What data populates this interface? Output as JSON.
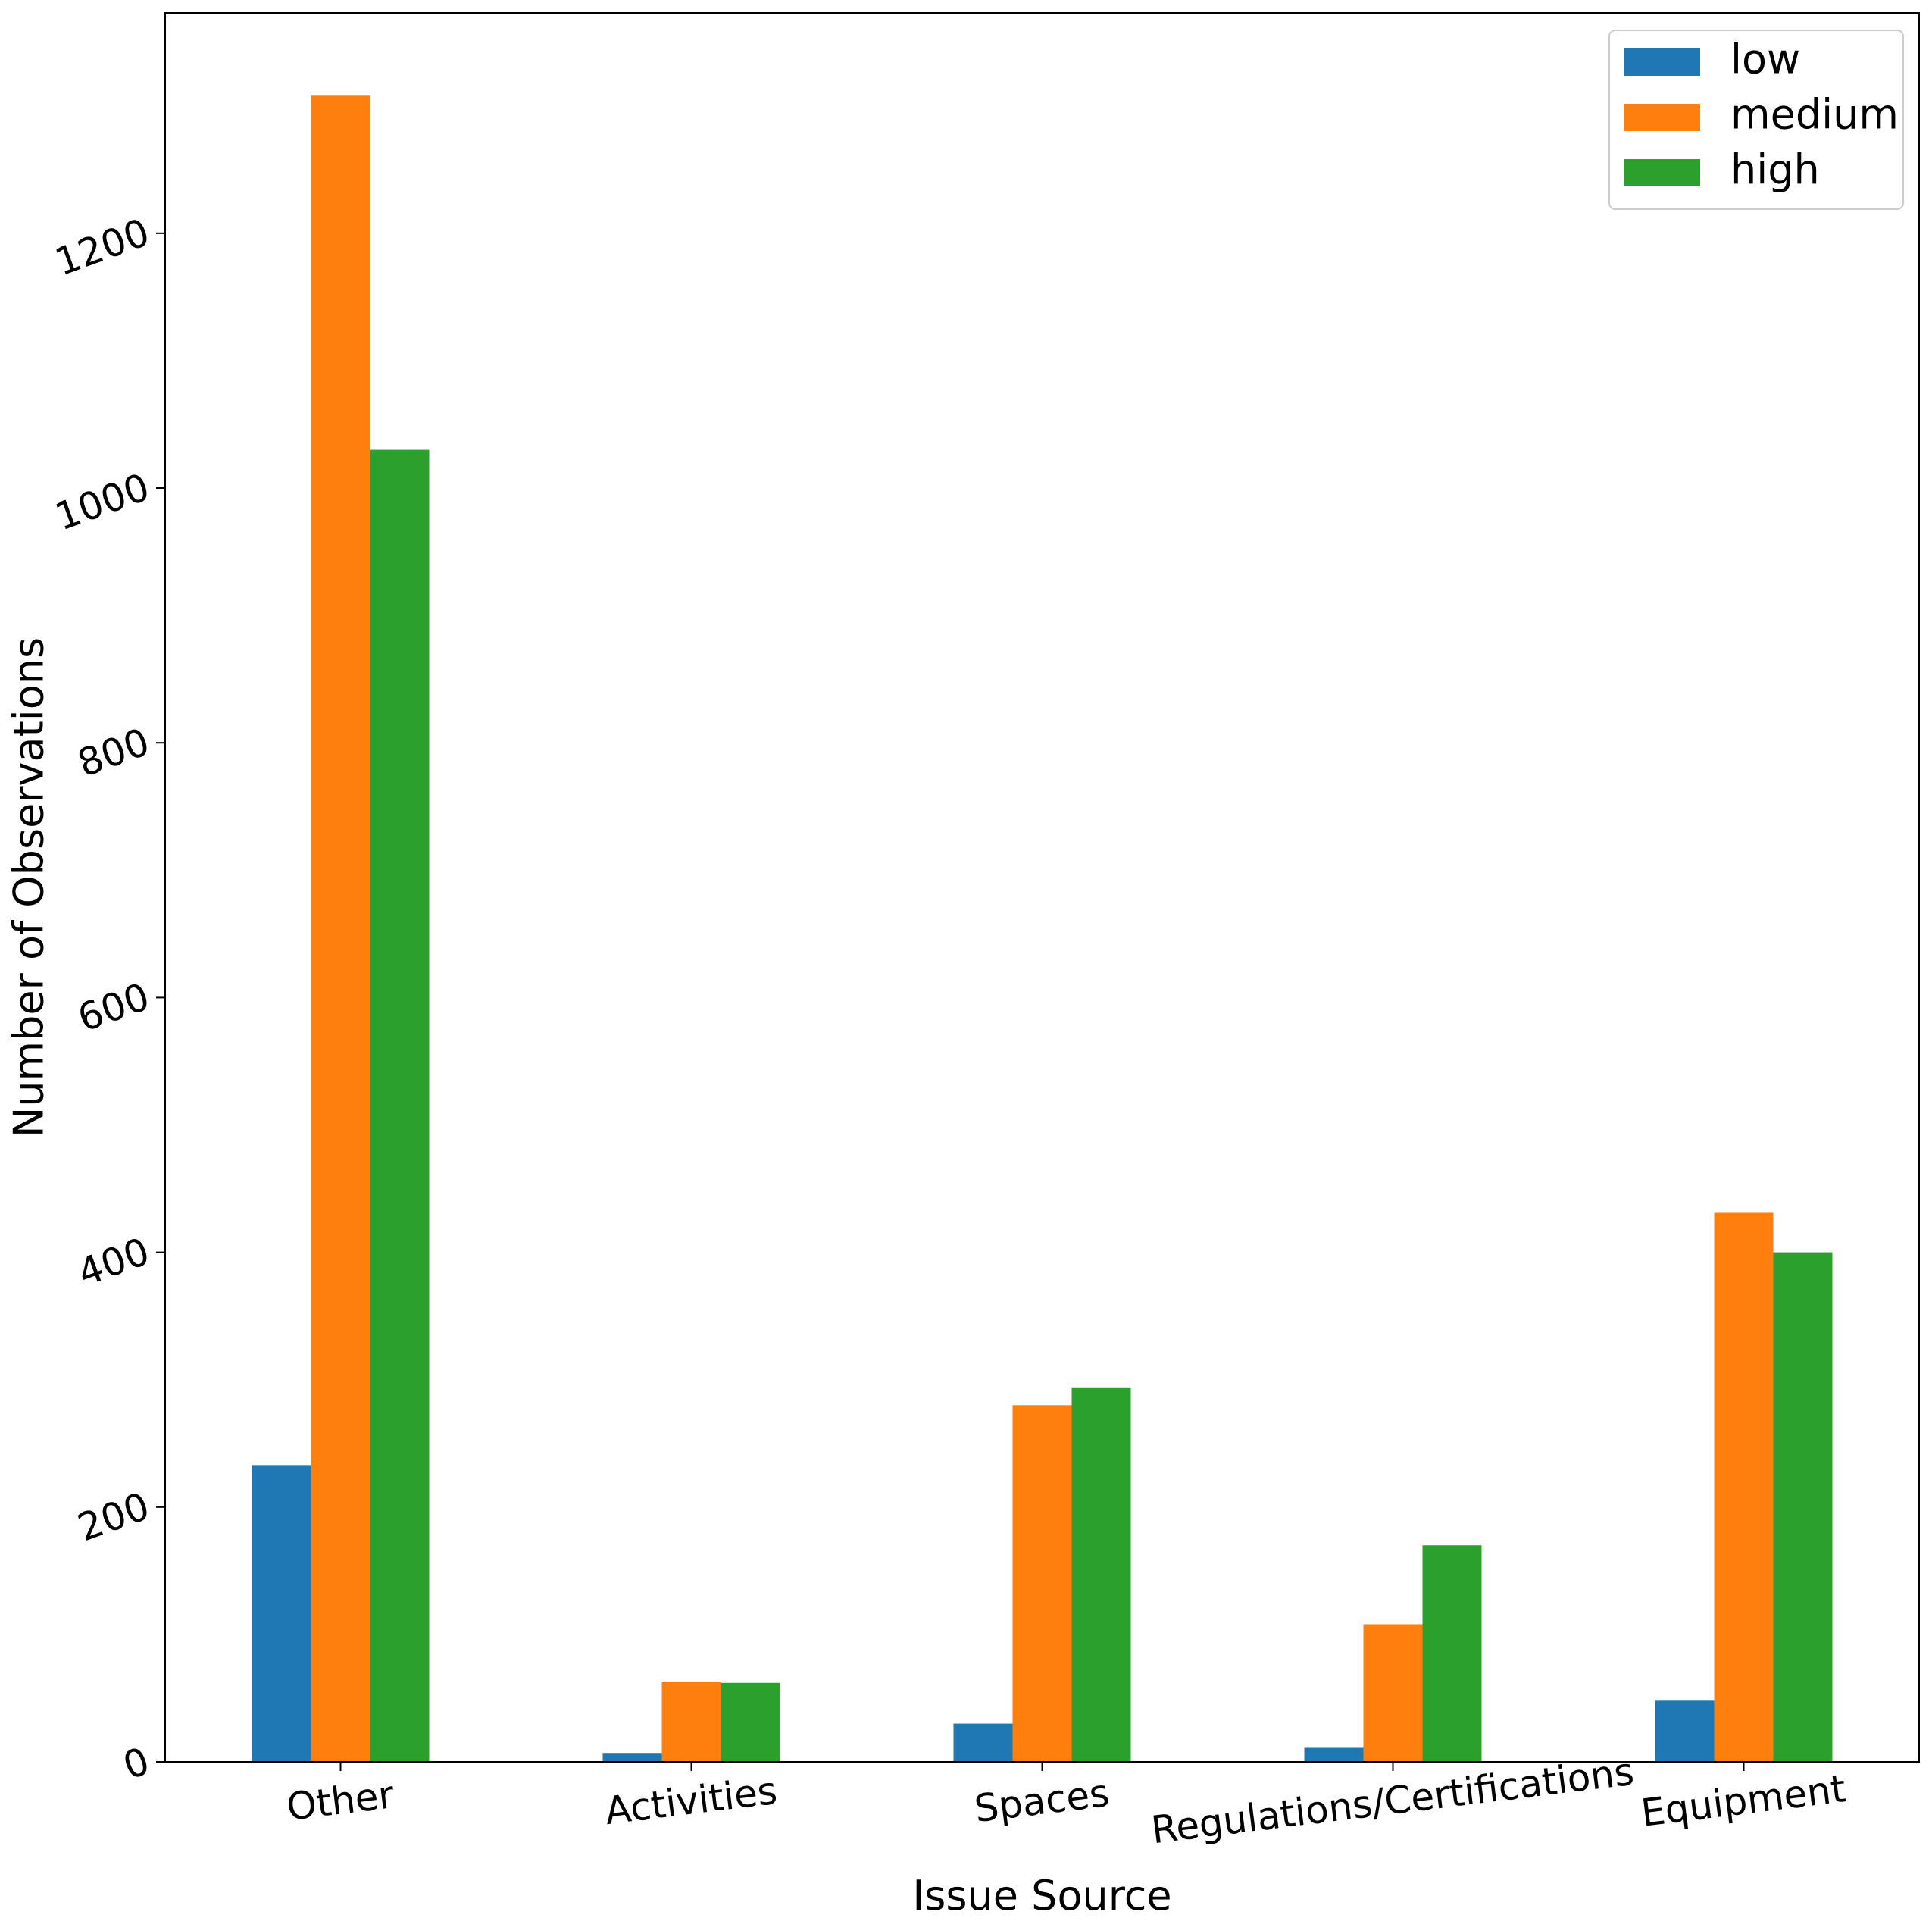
{
  "chart_data": {
    "type": "bar",
    "title": "",
    "xlabel": "Issue Source",
    "ylabel": "Number of Observations",
    "categories": [
      "Other",
      "Activities",
      "Spaces",
      "Regulations/Certifications",
      "Equipment"
    ],
    "series": [
      {
        "name": "low",
        "color": "#1f77b4",
        "values": [
          233,
          7,
          30,
          11,
          48
        ]
      },
      {
        "name": "medium",
        "color": "#ff7f0e",
        "values": [
          1308,
          63,
          280,
          108,
          431
        ]
      },
      {
        "name": "high",
        "color": "#2ca02c",
        "values": [
          1030,
          62,
          294,
          170,
          400
        ]
      }
    ],
    "ylim": [
      0,
      1373
    ],
    "yticks": [
      0,
      200,
      400,
      600,
      800,
      1000,
      1200
    ],
    "ytick_labels": [
      "0",
      "200",
      "400",
      "600",
      "800",
      "1000",
      "1200"
    ],
    "grid": false,
    "legend_position": "top-right"
  }
}
